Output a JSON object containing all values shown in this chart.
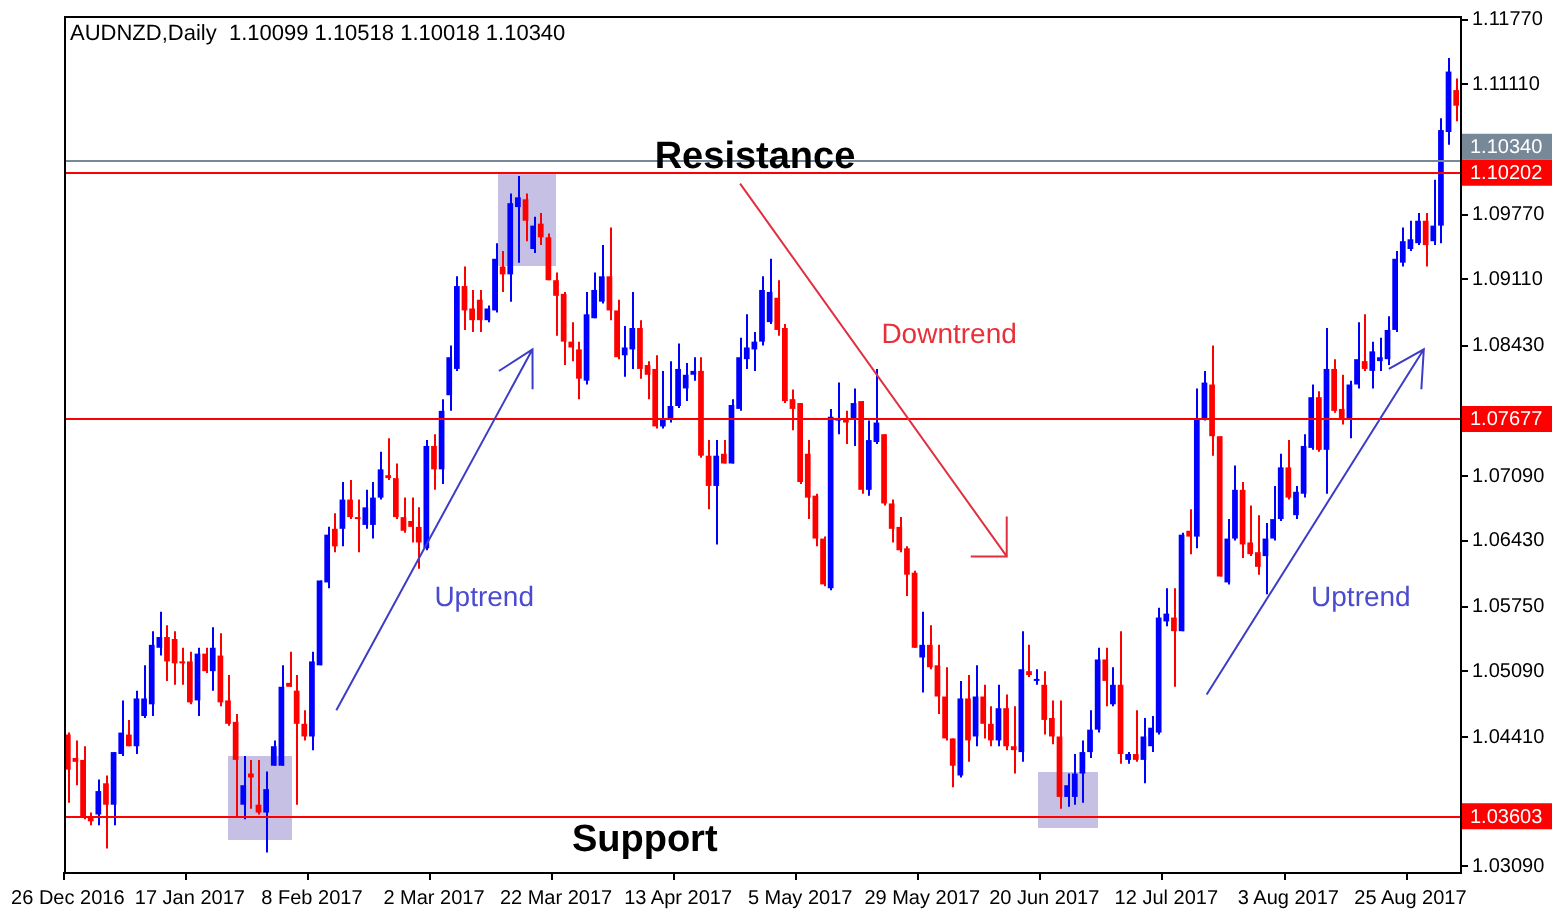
{
  "chart_data": {
    "type": "candlestick",
    "title": "AUDNZD,Daily  1.10099 1.10518 1.10018 1.10340",
    "categories": [
      "26 Dec 2016",
      null,
      null,
      null,
      null,
      null,
      null,
      null,
      null,
      null,
      null,
      null,
      null,
      null,
      null,
      null,
      "17 Jan 2017",
      null,
      null,
      null,
      null,
      null,
      null,
      null,
      null,
      null,
      null,
      null,
      null,
      null,
      null,
      null,
      "8 Feb 2017",
      null,
      null,
      null,
      null,
      null,
      null,
      null,
      null,
      null,
      null,
      null,
      null,
      null,
      null,
      null,
      "2 Mar 2017",
      null,
      null,
      null,
      null,
      null,
      null,
      null,
      null,
      null,
      null,
      null,
      null,
      null,
      null,
      null,
      "22 Mar 2017",
      null,
      null,
      null,
      null,
      null,
      null,
      null,
      null,
      null,
      null,
      null,
      null,
      null,
      null,
      null,
      "13 Apr 2017",
      null,
      null,
      null,
      null,
      null,
      null,
      null,
      null,
      null,
      null,
      null,
      null,
      null,
      null,
      null,
      "5 May 2017",
      null,
      null,
      null,
      null,
      null,
      null,
      null,
      null,
      null,
      null,
      null,
      null,
      null,
      null,
      null,
      "29 May 2017",
      null,
      null,
      null,
      null,
      null,
      null,
      null,
      null,
      null,
      null,
      null,
      null,
      null,
      null,
      null,
      "20 Jun 2017",
      null,
      null,
      null,
      null,
      null,
      null,
      null,
      null,
      null,
      null,
      null,
      null,
      null,
      null,
      null,
      "12 Jul 2017",
      null,
      null,
      null,
      null,
      null,
      null,
      null,
      null,
      null,
      null,
      null,
      null,
      null,
      null,
      null,
      "3 Aug 2017",
      null,
      null,
      null,
      null,
      null,
      null,
      null,
      null,
      null,
      null,
      null,
      null,
      null,
      null,
      null,
      "25 Aug 2017",
      null,
      null,
      null,
      null,
      null,
      null
    ],
    "ohlc": [
      [
        1.0444,
        1.0446,
        1.0374,
        1.0408
      ],
      [
        1.042,
        1.0438,
        1.0392,
        1.0416
      ],
      [
        1.0418,
        1.0432,
        1.0357,
        1.0359
      ],
      [
        1.0359,
        1.0364,
        1.0351,
        1.0355
      ],
      [
        1.0362,
        1.0398,
        1.0351,
        1.0386
      ],
      [
        1.0394,
        1.0402,
        1.0327,
        1.0372
      ],
      [
        1.0372,
        1.0426,
        1.0351,
        1.0426
      ],
      [
        1.0424,
        1.0479,
        1.0422,
        1.0446
      ],
      [
        1.0444,
        1.0459,
        1.0432,
        1.0432
      ],
      [
        1.0432,
        1.0489,
        1.0424,
        1.0481
      ],
      [
        1.0463,
        1.0515,
        1.0461,
        1.0481
      ],
      [
        1.0475,
        1.055,
        1.0463,
        1.0536
      ],
      [
        1.0533,
        1.057,
        1.0525,
        1.0544
      ],
      [
        1.0544,
        1.0556,
        1.0499,
        1.0519
      ],
      [
        1.0542,
        1.055,
        1.0495,
        1.0517
      ],
      [
        1.0519,
        1.0533,
        1.0495,
        1.0517
      ],
      [
        1.0519,
        1.0529,
        1.0475,
        1.0477
      ],
      [
        1.0479,
        1.0533,
        1.0463,
        1.0527
      ],
      [
        1.0527,
        1.0533,
        1.0507,
        1.0509
      ],
      [
        1.0509,
        1.0554,
        1.0489,
        1.0533
      ],
      [
        1.0525,
        1.0548,
        1.0473,
        1.0477
      ],
      [
        1.0479,
        1.0505,
        1.0453,
        1.0455
      ],
      [
        1.0457,
        1.0465,
        1.0359,
        1.0418
      ],
      [
        1.0372,
        1.0422,
        1.0357,
        1.0392
      ],
      [
        1.0404,
        1.0418,
        1.0368,
        1.04
      ],
      [
        1.0372,
        1.0418,
        1.0362,
        1.0364
      ],
      [
        1.0364,
        1.0406,
        1.0323,
        1.0388
      ],
      [
        1.0412,
        1.0438,
        1.0412,
        1.0432
      ],
      [
        1.0412,
        1.0515,
        1.0412,
        1.0493
      ],
      [
        1.0497,
        1.0529,
        1.0493,
        1.0493
      ],
      [
        1.0489,
        1.0505,
        1.0372,
        1.0455
      ],
      [
        1.0455,
        1.0469,
        1.0438,
        1.0442
      ],
      [
        1.0442,
        1.0529,
        1.0428,
        1.0519
      ],
      [
        1.0515,
        1.0602,
        1.0515,
        1.0602
      ],
      [
        1.06,
        1.0657,
        1.0594,
        1.0649
      ],
      [
        1.0655,
        1.0671,
        1.0631,
        1.0637
      ],
      [
        1.0655,
        1.0703,
        1.0637,
        1.0685
      ],
      [
        1.0685,
        1.0705,
        1.0665,
        1.0667
      ],
      [
        1.0667,
        1.0685,
        1.0631,
        1.0665
      ],
      [
        1.0659,
        1.0695,
        1.0655,
        1.0677
      ],
      [
        1.0659,
        1.0703,
        1.0645,
        1.0687
      ],
      [
        1.0687,
        1.0734,
        1.0685,
        1.0716
      ],
      [
        1.071,
        1.0748,
        1.0705,
        1.0707
      ],
      [
        1.0707,
        1.0722,
        1.0665,
        1.0667
      ],
      [
        1.0667,
        1.0687,
        1.0651,
        1.0653
      ],
      [
        1.0663,
        1.0687,
        1.0641,
        1.0657
      ],
      [
        1.0657,
        1.0677,
        1.0614,
        1.0641
      ],
      [
        1.0635,
        1.0746,
        1.0633,
        1.074
      ],
      [
        1.074,
        1.0752,
        1.0695,
        1.0716
      ],
      [
        1.0716,
        1.0788,
        1.0701,
        1.0776
      ],
      [
        1.0792,
        1.0843,
        1.0776,
        1.0831
      ],
      [
        1.0819,
        1.0914,
        1.0817,
        1.0904
      ],
      [
        1.0904,
        1.0924,
        1.0859,
        1.0879
      ],
      [
        1.0881,
        1.09,
        1.0857,
        1.0869
      ],
      [
        1.089,
        1.09,
        1.0857,
        1.0869
      ],
      [
        1.0869,
        1.0884,
        1.0867,
        1.0881
      ],
      [
        1.0879,
        1.0948,
        1.0877,
        1.0932
      ],
      [
        1.0924,
        1.094,
        1.0898,
        1.0916
      ],
      [
        1.0916,
        1.0999,
        1.0888,
        1.0989
      ],
      [
        1.0985,
        1.1017,
        1.0928,
        1.0995
      ],
      [
        1.0993,
        1.0999,
        1.095,
        1.0971
      ],
      [
        1.0942,
        1.0975,
        1.0938,
        1.0966
      ],
      [
        1.0968,
        1.0979,
        1.0946,
        1.0954
      ],
      [
        1.0954,
        1.0958,
        1.091,
        1.091
      ],
      [
        1.091,
        1.0918,
        1.0853,
        1.0894
      ],
      [
        1.0896,
        1.0898,
        1.0823,
        1.0847
      ],
      [
        1.0847,
        1.0867,
        1.0827,
        1.0841
      ],
      [
        1.0839,
        1.0847,
        1.0788,
        1.0809
      ],
      [
        1.0807,
        1.0898,
        1.0803,
        1.0875
      ],
      [
        1.0871,
        1.0918,
        1.0871,
        1.09
      ],
      [
        1.0888,
        1.0946,
        1.0886,
        1.0914
      ],
      [
        1.0914,
        1.0964,
        1.0869,
        1.0879
      ],
      [
        1.0879,
        1.089,
        1.0829,
        1.0831
      ],
      [
        1.0833,
        1.0863,
        1.0811,
        1.0841
      ],
      [
        1.0839,
        1.0898,
        1.0819,
        1.0861
      ],
      [
        1.0861,
        1.0869,
        1.0809,
        1.0819
      ],
      [
        1.0823,
        1.0827,
        1.0788,
        1.0813
      ],
      [
        1.0819,
        1.0833,
        1.0758,
        1.076
      ],
      [
        1.076,
        1.0817,
        1.0758,
        1.0768
      ],
      [
        1.0768,
        1.0827,
        1.0764,
        1.0781
      ],
      [
        1.0781,
        1.0845,
        1.0779,
        1.0819
      ],
      [
        1.0799,
        1.0825,
        1.0786,
        1.0813
      ],
      [
        1.0813,
        1.0831,
        1.0807,
        1.0817
      ],
      [
        1.0817,
        1.0831,
        1.0728,
        1.073
      ],
      [
        1.073,
        1.0746,
        1.0675,
        1.0699
      ],
      [
        1.0699,
        1.0746,
        1.0639,
        1.073
      ],
      [
        1.0732,
        1.0746,
        1.0722,
        1.0722
      ],
      [
        1.0722,
        1.0788,
        1.0722,
        1.0782
      ],
      [
        1.0778,
        1.0851,
        1.0776,
        1.0831
      ],
      [
        1.0829,
        1.0875,
        1.0819,
        1.0841
      ],
      [
        1.0839,
        1.0857,
        1.0817,
        1.0847
      ],
      [
        1.0847,
        1.0914,
        1.0843,
        1.09
      ],
      [
        1.0867,
        1.0932,
        1.0865,
        1.0898
      ],
      [
        1.0892,
        1.091,
        1.0853,
        1.0859
      ],
      [
        1.0861,
        1.0865,
        1.0784,
        1.0786
      ],
      [
        1.0788,
        1.0798,
        1.0756,
        1.0778
      ],
      [
        1.0784,
        1.0784,
        1.0701,
        1.0703
      ],
      [
        1.0732,
        1.0746,
        1.0665,
        1.0687
      ],
      [
        1.0689,
        1.0691,
        1.0637,
        1.0645
      ],
      [
        1.0645,
        1.0647,
        1.0596,
        1.0598
      ],
      [
        1.0594,
        1.0778,
        1.0592,
        1.077
      ],
      [
        1.0766,
        1.0805,
        1.0752,
        1.0768
      ],
      [
        1.0768,
        1.0776,
        1.0742,
        1.0764
      ],
      [
        1.0768,
        1.0799,
        1.074,
        1.0784
      ],
      [
        1.0786,
        1.0786,
        1.0691,
        1.0695
      ],
      [
        1.0695,
        1.0766,
        1.0689,
        1.0746
      ],
      [
        1.0744,
        1.0819,
        1.0742,
        1.0764
      ],
      [
        1.0752,
        1.0752,
        1.0679,
        1.0681
      ],
      [
        1.0681,
        1.0685,
        1.0641,
        1.0655
      ],
      [
        1.0657,
        1.0667,
        1.0631,
        1.0633
      ],
      [
        1.0635,
        1.0637,
        1.0586,
        1.0608
      ],
      [
        1.061,
        1.0612,
        1.0533,
        1.0533
      ],
      [
        1.0523,
        1.057,
        1.0487,
        1.0536
      ],
      [
        1.0536,
        1.0556,
        1.0511,
        1.0513
      ],
      [
        1.0515,
        1.0536,
        1.0465,
        1.0483
      ],
      [
        1.0483,
        1.0513,
        1.0438,
        1.044
      ],
      [
        1.044,
        1.044,
        1.039,
        1.0412
      ],
      [
        1.0402,
        1.0499,
        1.04,
        1.0481
      ],
      [
        1.0481,
        1.0505,
        1.0416,
        1.0438
      ],
      [
        1.0442,
        1.0515,
        1.0432,
        1.0483
      ],
      [
        1.0483,
        1.0495,
        1.044,
        1.0455
      ],
      [
        1.0455,
        1.0473,
        1.0432,
        1.0438
      ],
      [
        1.0438,
        1.0495,
        1.0432,
        1.0471
      ],
      [
        1.0471,
        1.0485,
        1.0428,
        1.0432
      ],
      [
        1.0432,
        1.0473,
        1.0404,
        1.0428
      ],
      [
        1.0426,
        1.055,
        1.0416,
        1.0511
      ],
      [
        1.0509,
        1.0536,
        1.0503,
        1.0505
      ],
      [
        1.0499,
        1.0511,
        1.0495,
        1.0501
      ],
      [
        1.0495,
        1.0509,
        1.0444,
        1.0459
      ],
      [
        1.0461,
        1.0479,
        1.0434,
        1.0442
      ],
      [
        1.0442,
        1.0479,
        1.0368,
        1.038
      ],
      [
        1.038,
        1.0404,
        1.037,
        1.0392
      ],
      [
        1.038,
        1.0424,
        1.0372,
        1.0404
      ],
      [
        1.0404,
        1.0438,
        1.0374,
        1.0426
      ],
      [
        1.0426,
        1.0469,
        1.042,
        1.0449
      ],
      [
        1.0449,
        1.0533,
        1.0446,
        1.0521
      ],
      [
        1.0521,
        1.0533,
        1.0473,
        1.0499
      ],
      [
        1.0475,
        1.0513,
        1.0473,
        1.0495
      ],
      [
        1.0495,
        1.055,
        1.0414,
        1.0424
      ],
      [
        1.0418,
        1.0426,
        1.0414,
        1.0424
      ],
      [
        1.0424,
        1.0469,
        1.0416,
        1.0418
      ],
      [
        1.0418,
        1.0461,
        1.0394,
        1.0442
      ],
      [
        1.0432,
        1.0463,
        1.0426,
        1.0451
      ],
      [
        1.0446,
        1.0574,
        1.0444,
        1.0564
      ],
      [
        1.056,
        1.0594,
        1.0555,
        1.0568
      ],
      [
        1.0564,
        1.0594,
        1.0493,
        1.055
      ],
      [
        1.055,
        1.0651,
        1.055,
        1.0649
      ],
      [
        1.0653,
        1.0675,
        1.0629,
        1.0647
      ],
      [
        1.0647,
        1.0799,
        1.0635,
        1.0768
      ],
      [
        1.0768,
        1.0817,
        1.0766,
        1.0805
      ],
      [
        1.0803,
        1.0843,
        1.073,
        1.075
      ],
      [
        1.075,
        1.075,
        1.0606,
        1.0606
      ],
      [
        1.06,
        1.0665,
        1.0598,
        1.0645
      ],
      [
        1.0645,
        1.072,
        1.0643,
        1.0695
      ],
      [
        1.0695,
        1.0703,
        1.0625,
        1.0639
      ],
      [
        1.0641,
        1.0679,
        1.0627,
        1.0629
      ],
      [
        1.0631,
        1.0669,
        1.0608,
        1.0616
      ],
      [
        1.0627,
        1.0661,
        1.0588,
        1.0645
      ],
      [
        1.0645,
        1.0699,
        1.0643,
        1.0665
      ],
      [
        1.0665,
        1.0732,
        1.0663,
        1.0718
      ],
      [
        1.0718,
        1.0746,
        1.0685,
        1.0687
      ],
      [
        1.0669,
        1.0699,
        1.0665,
        1.0693
      ],
      [
        1.0691,
        1.0752,
        1.0687,
        1.074
      ],
      [
        1.0738,
        1.0803,
        1.0736,
        1.079
      ],
      [
        1.079,
        1.0796,
        1.0734,
        1.0736
      ],
      [
        1.0736,
        1.0861,
        1.0691,
        1.0819
      ],
      [
        1.0819,
        1.0829,
        1.0774,
        1.0776
      ],
      [
        1.0778,
        1.0813,
        1.0762,
        1.0768
      ],
      [
        1.0768,
        1.0807,
        1.0748,
        1.0803
      ],
      [
        1.0803,
        1.0867,
        1.0799,
        1.0829
      ],
      [
        1.0827,
        1.0875,
        1.0817,
        1.0819
      ],
      [
        1.0817,
        1.0847,
        1.0799,
        1.0837
      ],
      [
        1.0827,
        1.0851,
        1.0817,
        1.0831
      ],
      [
        1.0829,
        1.0873,
        1.0823,
        1.0859
      ],
      [
        1.0859,
        1.094,
        1.0857,
        1.0932
      ],
      [
        1.0928,
        1.0964,
        1.0924,
        1.095
      ],
      [
        1.0942,
        1.0971,
        1.094,
        1.0952
      ],
      [
        1.0948,
        1.0979,
        1.0946,
        1.0971
      ],
      [
        1.0971,
        1.0979,
        1.0924,
        1.0946
      ],
      [
        1.095,
        1.1013,
        1.0946,
        1.0966
      ],
      [
        1.0966,
        1.1076,
        1.0948,
        1.1064
      ],
      [
        1.1062,
        1.1138,
        1.1049,
        1.1124
      ],
      [
        1.1105,
        1.1117,
        1.1073,
        1.1089
      ]
    ],
    "colors": [
      "#ff0000",
      "#ff0000",
      "#ff0000",
      "#ff0000",
      "#0000ff",
      "#ff0000",
      "#0000ff",
      "#0000ff",
      "#ff0000",
      "#0000ff",
      "#0000ff",
      "#0000ff",
      "#0000ff",
      "#ff0000",
      "#ff0000",
      "#ff0000",
      "#ff0000",
      "#0000ff",
      "#ff0000",
      "#0000ff",
      "#ff0000",
      "#ff0000",
      "#ff0000",
      "#0000ff",
      "#ff0000",
      "#ff0000",
      "#0000ff",
      "#0000ff",
      "#0000ff",
      "#ff0000",
      "#ff0000",
      "#ff0000",
      "#0000ff",
      "#0000ff",
      "#0000ff",
      "#ff0000",
      "#0000ff",
      "#ff0000",
      "#ff0000",
      "#0000ff",
      "#0000ff",
      "#0000ff",
      "#ff0000",
      "#ff0000",
      "#ff0000",
      "#ff0000",
      "#ff0000",
      "#0000ff",
      "#ff0000",
      "#0000ff",
      "#0000ff",
      "#0000ff",
      "#ff0000",
      "#ff0000",
      "#ff0000",
      "#0000ff",
      "#0000ff",
      "#ff0000",
      "#0000ff",
      "#0000ff",
      "#ff0000",
      "#0000ff",
      "#ff0000",
      "#ff0000",
      "#ff0000",
      "#ff0000",
      "#ff0000",
      "#ff0000",
      "#0000ff",
      "#0000ff",
      "#0000ff",
      "#ff0000",
      "#ff0000",
      "#0000ff",
      "#0000ff",
      "#ff0000",
      "#ff0000",
      "#ff0000",
      "#0000ff",
      "#0000ff",
      "#0000ff",
      "#0000ff",
      "#0000ff",
      "#ff0000",
      "#ff0000",
      "#0000ff",
      "#ff0000",
      "#0000ff",
      "#0000ff",
      "#0000ff",
      "#0000ff",
      "#0000ff",
      "#0000ff",
      "#ff0000",
      "#ff0000",
      "#ff0000",
      "#ff0000",
      "#ff0000",
      "#ff0000",
      "#ff0000",
      "#0000ff",
      "#0000ff",
      "#ff0000",
      "#0000ff",
      "#ff0000",
      "#0000ff",
      "#0000ff",
      "#ff0000",
      "#ff0000",
      "#ff0000",
      "#ff0000",
      "#ff0000",
      "#0000ff",
      "#ff0000",
      "#ff0000",
      "#ff0000",
      "#ff0000",
      "#0000ff",
      "#ff0000",
      "#0000ff",
      "#ff0000",
      "#ff0000",
      "#0000ff",
      "#ff0000",
      "#ff0000",
      "#0000ff",
      "#ff0000",
      "#0000ff",
      "#ff0000",
      "#ff0000",
      "#ff0000",
      "#0000ff",
      "#0000ff",
      "#0000ff",
      "#0000ff",
      "#0000ff",
      "#ff0000",
      "#0000ff",
      "#ff0000",
      "#0000ff",
      "#ff0000",
      "#0000ff",
      "#0000ff",
      "#0000ff",
      "#0000ff",
      "#ff0000",
      "#0000ff",
      "#ff0000",
      "#0000ff",
      "#0000ff",
      "#ff0000",
      "#ff0000",
      "#0000ff",
      "#0000ff",
      "#ff0000",
      "#ff0000",
      "#ff0000",
      "#0000ff",
      "#0000ff",
      "#0000ff",
      "#ff0000",
      "#0000ff",
      "#0000ff",
      "#0000ff",
      "#ff0000",
      "#0000ff",
      "#ff0000",
      "#ff0000",
      "#0000ff",
      "#0000ff",
      "#ff0000",
      "#0000ff",
      "#0000ff",
      "#0000ff",
      "#0000ff",
      "#0000ff",
      "#0000ff",
      "#0000ff",
      "#ff0000",
      "#0000ff",
      "#0000ff",
      "#0000ff",
      "#ff0000"
    ],
    "ylim": [
      1.0303,
      1.1181
    ],
    "yticks": [
      {
        "value": 1.0309,
        "label": "1.03090"
      },
      {
        "value": 1.0441,
        "label": "1.04410"
      },
      {
        "value": 1.0509,
        "label": "1.05090"
      },
      {
        "value": 1.0575,
        "label": "1.05750"
      },
      {
        "value": 1.0643,
        "label": "1.06430"
      },
      {
        "value": 1.0709,
        "label": "1.07090"
      },
      {
        "value": 1.0843,
        "label": "1.08430"
      },
      {
        "value": 1.0911,
        "label": "1.09110"
      },
      {
        "value": 1.0977,
        "label": "1.09770"
      },
      {
        "value": 1.1111,
        "label": "1.11110"
      },
      {
        "value": 1.1177,
        "label": "1.11770"
      }
    ],
    "ref_lines": [
      {
        "axis": "y",
        "value": 1.1034,
        "label": "1.10340",
        "color": "#778899"
      },
      {
        "axis": "y",
        "value": 1.10202,
        "label": "1.10202",
        "color": "#ff0000"
      },
      {
        "axis": "y",
        "value": 1.07677,
        "label": "1.07677",
        "color": "#ff0000"
      },
      {
        "axis": "y",
        "value": 1.03603,
        "label": "1.03603",
        "color": "#ff0000"
      }
    ],
    "annotations": [
      "Resistance",
      "Support",
      "Downtrend",
      "Uptrend",
      "Uptrend"
    ]
  }
}
